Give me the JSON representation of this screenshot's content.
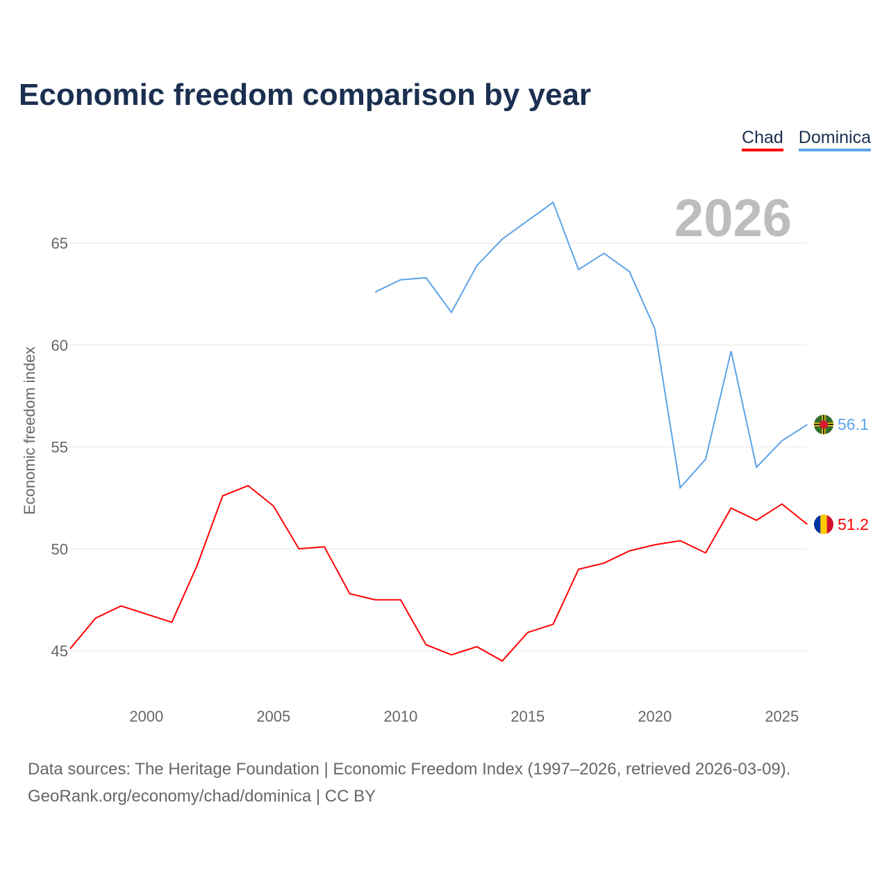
{
  "chart_data": {
    "type": "line",
    "title": "Economic freedom comparison by year",
    "ylabel": "Economic freedom index",
    "xlabel": "",
    "year_watermark": "2026",
    "xlim": [
      1997,
      2026
    ],
    "ylim": [
      43.5,
      68.5
    ],
    "xticks": [
      2000,
      2005,
      2010,
      2015,
      2020,
      2025
    ],
    "yticks": [
      45,
      50,
      55,
      60,
      65
    ],
    "grid": true,
    "legend_position": "top-right",
    "series": [
      {
        "name": "Chad",
        "color": "#ff0000",
        "end_label": "51.2",
        "start": 1997,
        "values": [
          45.1,
          46.6,
          47.2,
          46.8,
          46.4,
          49.2,
          52.6,
          53.1,
          52.1,
          50.0,
          50.1,
          47.8,
          47.5,
          47.5,
          45.3,
          44.8,
          45.2,
          44.5,
          45.9,
          46.3,
          49.0,
          49.3,
          49.9,
          50.2,
          50.4,
          49.8,
          52.0,
          51.4,
          52.2,
          51.2
        ]
      },
      {
        "name": "Dominica",
        "color": "#5ba3e8",
        "end_label": "56.1",
        "start": 2009,
        "values": [
          62.6,
          63.2,
          63.3,
          61.6,
          63.9,
          65.2,
          66.1,
          67.0,
          63.7,
          64.5,
          63.6,
          60.8,
          53.0,
          54.4,
          59.7,
          54.0,
          55.3,
          56.1
        ]
      }
    ]
  },
  "footer": {
    "line1": "Data sources: The Heritage Foundation | Economic Freedom Index (1997–2026, retrieved 2026-03-09).",
    "line2": "GeoRank.org/economy/chad/dominica | CC BY"
  }
}
